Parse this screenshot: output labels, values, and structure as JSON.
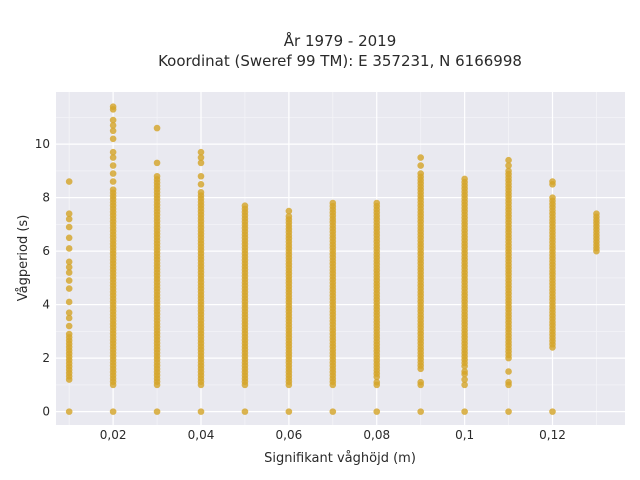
{
  "chart_data": {
    "type": "scatter",
    "title": "År 1979 - 2019",
    "subtitle": "Koordinat (Sweref 99 TM): E 357231, N 6166998",
    "xlabel": "Signifikant våghöjd (m)",
    "ylabel": "Vågperiod (s)",
    "xlim": [
      0.007,
      0.1365
    ],
    "ylim": [
      -0.5,
      11.95
    ],
    "x_ticks": [
      0.02,
      0.04,
      0.06,
      0.08,
      0.1,
      0.12
    ],
    "x_tick_labels": [
      "0,02",
      "0,04",
      "0,06",
      "0,08",
      "0,1",
      "0,12"
    ],
    "y_ticks": [
      0,
      2,
      4,
      6,
      8,
      10
    ],
    "y_tick_labels": [
      "0",
      "2",
      "4",
      "6",
      "8",
      "10"
    ],
    "grid": true,
    "legend": "none",
    "marker_color": "#d4a52a",
    "plot_background": "#e9e9f0",
    "series": [
      {
        "points_by_x": [
          {
            "x": 0.01,
            "zero": true,
            "dense": [
              [
                1.2,
                2.9
              ]
            ],
            "scatter": [
              3.2,
              3.5,
              3.7,
              4.1,
              4.6,
              4.9,
              5.2,
              5.4,
              5.6,
              6.1,
              6.5,
              6.9,
              7.2,
              7.4,
              8.6
            ]
          },
          {
            "x": 0.02,
            "zero": true,
            "dense": [
              [
                1.0,
                8.3
              ]
            ],
            "scatter": [
              8.6,
              8.9,
              9.2,
              9.5,
              9.7,
              10.2,
              10.5,
              10.7,
              10.9,
              11.3,
              11.4
            ]
          },
          {
            "x": 0.03,
            "zero": true,
            "dense": [
              [
                1.0,
                8.8
              ]
            ],
            "scatter": [
              9.3,
              10.6
            ]
          },
          {
            "x": 0.04,
            "zero": true,
            "dense": [
              [
                1.0,
                8.2
              ]
            ],
            "scatter": [
              8.5,
              8.8,
              9.3,
              9.5,
              9.7
            ]
          },
          {
            "x": 0.05,
            "zero": true,
            "dense": [
              [
                1.0,
                7.7
              ]
            ],
            "scatter": []
          },
          {
            "x": 0.06,
            "zero": true,
            "dense": [
              [
                1.0,
                7.3
              ]
            ],
            "scatter": [
              7.5
            ]
          },
          {
            "x": 0.07,
            "zero": true,
            "dense": [
              [
                1.0,
                7.8
              ]
            ],
            "scatter": []
          },
          {
            "x": 0.08,
            "zero": true,
            "dense": [
              [
                1.3,
                7.8
              ]
            ],
            "scatter": [
              1.0,
              1.1
            ]
          },
          {
            "x": 0.09,
            "zero": true,
            "dense": [
              [
                1.6,
                8.9
              ]
            ],
            "scatter": [
              1.0,
              1.1,
              9.2,
              9.5
            ]
          },
          {
            "x": 0.1,
            "zero": true,
            "dense": [
              [
                1.7,
                8.7
              ]
            ],
            "scatter": [
              1.0,
              1.2,
              1.4,
              1.5
            ]
          },
          {
            "x": 0.11,
            "zero": true,
            "dense": [
              [
                2.0,
                9.0
              ]
            ],
            "scatter": [
              1.0,
              1.1,
              1.5,
              9.2,
              9.4
            ]
          },
          {
            "x": 0.12,
            "zero": true,
            "dense": [
              [
                2.4,
                8.0
              ]
            ],
            "scatter": [
              8.5,
              8.6
            ]
          },
          {
            "x": 0.13,
            "zero": false,
            "dense": [
              [
                6.0,
                7.4
              ]
            ],
            "scatter": []
          }
        ]
      }
    ]
  }
}
